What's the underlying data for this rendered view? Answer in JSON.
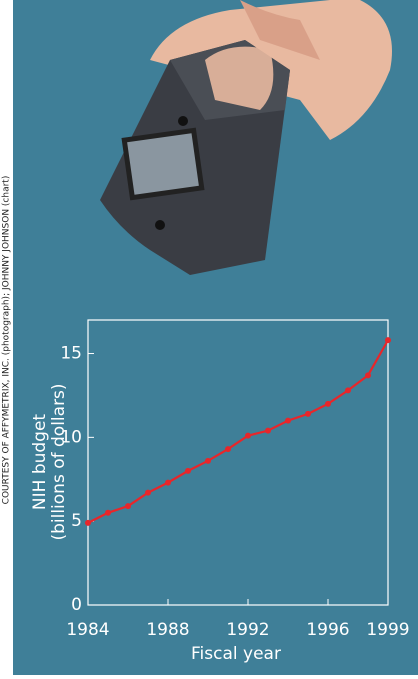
{
  "credit": "COURTESY OF AFFYMETRIX, INC. (photograph); JOHNNY JOHNSON (chart)",
  "chart_data": {
    "type": "line",
    "xlabel": "Fiscal year",
    "ylabel": [
      "NIH budget",
      "(billions of dollars)"
    ],
    "x": [
      1984,
      1985,
      1986,
      1987,
      1988,
      1989,
      1990,
      1991,
      1992,
      1993,
      1994,
      1995,
      1996,
      1997,
      1998,
      1999
    ],
    "series": [
      {
        "color": "#e8262a",
        "values": [
          4.9,
          5.5,
          5.9,
          6.7,
          7.3,
          8.0,
          8.6,
          9.3,
          10.1,
          10.4,
          11.0,
          11.4,
          12.0,
          12.8,
          13.7,
          15.8
        ]
      }
    ],
    "xlim": [
      1984,
      1999
    ],
    "xticks": [
      1984,
      1988,
      1992,
      1996,
      1999
    ],
    "ylim": [
      0,
      17
    ],
    "yticks": [
      0,
      5,
      10,
      15
    ]
  }
}
